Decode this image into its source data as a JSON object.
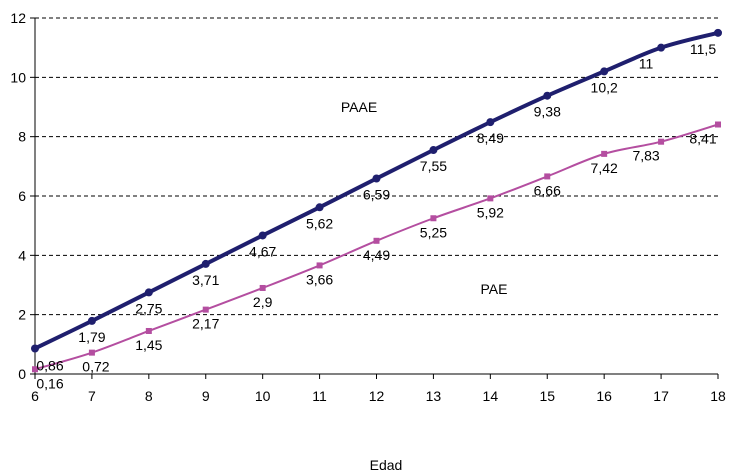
{
  "chart_data": {
    "type": "line",
    "xlabel": "Edad",
    "ylabel": "",
    "x": [
      6,
      7,
      8,
      9,
      10,
      11,
      12,
      13,
      14,
      15,
      16,
      17,
      18
    ],
    "xlim": [
      6,
      18
    ],
    "ylim": [
      0,
      12
    ],
    "yticks": [
      0,
      2,
      4,
      6,
      8,
      10,
      12
    ],
    "grid": "horizontal-dashed",
    "legend": "none",
    "series": [
      {
        "name": "PAAE",
        "color": "#1f1f6e",
        "marker": "circle",
        "values": [
          0.86,
          1.79,
          2.75,
          3.71,
          4.67,
          5.62,
          6.59,
          7.55,
          8.49,
          9.38,
          10.2,
          11,
          11.5
        ],
        "labels": [
          "0,86",
          "1,79",
          "2,75",
          "3,71",
          "4,67",
          "5,62",
          "6,59",
          "7,55",
          "8,49",
          "9,38",
          "10,2",
          "11",
          "11,5"
        ]
      },
      {
        "name": "PAE",
        "color": "#b44ea0",
        "marker": "square",
        "values": [
          0.16,
          0.72,
          1.45,
          2.17,
          2.9,
          3.66,
          4.49,
          5.25,
          5.92,
          6.66,
          7.42,
          7.83,
          8.41
        ],
        "labels": [
          "0,16",
          "0,72",
          "1,45",
          "2,17",
          "2,9",
          "3,66",
          "4,49",
          "5,25",
          "5,92",
          "6,66",
          "7,42",
          "7,83",
          "8,41"
        ]
      }
    ]
  }
}
